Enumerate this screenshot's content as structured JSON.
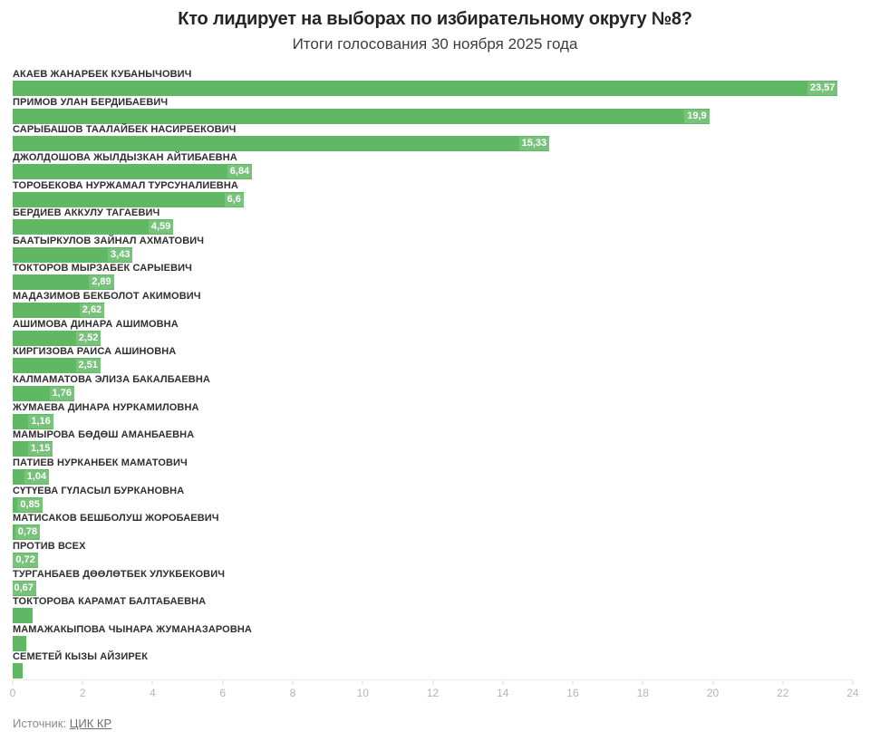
{
  "header": {
    "title": "Кто лидирует на выборах по избирательному округу №8?",
    "subtitle": "Итоги голосования 30 ноября 2025 года"
  },
  "chart_data": {
    "type": "bar",
    "orientation": "horizontal",
    "title": "Кто лидирует на выборах по избирательному округу №8?",
    "subtitle": "Итоги голосования 30 ноября 2025 года",
    "bar_color": "#61b864",
    "value_label_text_color": "#ffffff",
    "grid": false,
    "legend": "none",
    "axis": {
      "min": 0,
      "max": 24,
      "ticks": [
        0,
        2,
        4,
        6,
        8,
        10,
        12,
        14,
        16,
        18,
        20,
        22,
        24
      ]
    },
    "items": [
      {
        "name": "АКАЕВ ЖАНАРБЕК КУБАНЫЧОВИЧ",
        "value": 23.57,
        "label": "23,57"
      },
      {
        "name": "ПРИМОВ УЛАН БЕРДИБАЕВИЧ",
        "value": 19.9,
        "label": "19,9"
      },
      {
        "name": "САРЫБАШОВ ТААЛАЙБЕК НАСИРБЕКОВИЧ",
        "value": 15.33,
        "label": "15,33"
      },
      {
        "name": "ДЖОЛДОШОВА ЖЫЛДЫЗКАН АЙТИБАЕВНА",
        "value": 6.84,
        "label": "6,84"
      },
      {
        "name": "ТОРОБЕКОВА НУРЖАМАЛ ТУРСУНАЛИЕВНА",
        "value": 6.6,
        "label": "6,6"
      },
      {
        "name": "БЕРДИЕВ АККУЛУ ТАГАЕВИЧ",
        "value": 4.59,
        "label": "4,59"
      },
      {
        "name": "БААТЫРКУЛОВ ЗАЙНАЛ АХМАТОВИЧ",
        "value": 3.43,
        "label": "3,43"
      },
      {
        "name": "ТОКТОРОВ МЫРЗАБЕК САРЫЕВИЧ",
        "value": 2.89,
        "label": "2,89"
      },
      {
        "name": "МАДАЗИМОВ БЕКБОЛОТ АКИМОВИЧ",
        "value": 2.62,
        "label": "2,62"
      },
      {
        "name": "АШИМОВА ДИНАРА АШИМОВНА",
        "value": 2.52,
        "label": "2,52"
      },
      {
        "name": "КИРГИЗОВА РАИСА АШИНОВНА",
        "value": 2.51,
        "label": "2,51"
      },
      {
        "name": "КАЛМАМАТОВА ЭЛИЗА БАКАЛБАЕВНА",
        "value": 1.76,
        "label": "1,76"
      },
      {
        "name": "ЖУМАЕВА ДИНАРА НУРКАМИЛОВНА",
        "value": 1.16,
        "label": "1,16"
      },
      {
        "name": "МАМЫРОВА БӨДӨШ АМАНБАЕВНА",
        "value": 1.15,
        "label": "1,15"
      },
      {
        "name": "ПАТИЕВ НУРКАНБЕК МАМАТОВИЧ",
        "value": 1.04,
        "label": "1,04"
      },
      {
        "name": "СҮТҮЕВА ГҮЛАСЫЛ БУРКАНОВНА",
        "value": 0.85,
        "label": "0,85"
      },
      {
        "name": "МАТИСАКОВ БЕШБОЛУШ ЖОРОБАЕВИЧ",
        "value": 0.78,
        "label": "0,78"
      },
      {
        "name": "ПРОТИВ ВСЕХ",
        "value": 0.72,
        "label": "0,72"
      },
      {
        "name": "ТУРГАНБАЕВ ДӨӨЛӨТБЕК УЛУКБЕКОВИЧ",
        "value": 0.67,
        "label": "0,67"
      },
      {
        "name": "ТОКТОРОВА КАРАМАТ БАЛТАБАЕВНА",
        "value": 0.57,
        "label": ""
      },
      {
        "name": "МАМАЖАКЫПОВА ЧЫНАРА ЖУМАНАЗАРОВНА",
        "value": 0.39,
        "label": ""
      },
      {
        "name": "СЕМЕТЕЙ КЫЗЫ АЙЗИРЕК",
        "value": 0.28,
        "label": ""
      }
    ]
  },
  "footer": {
    "source_prefix": "Источник:",
    "source_link": "ЦИК КР"
  }
}
